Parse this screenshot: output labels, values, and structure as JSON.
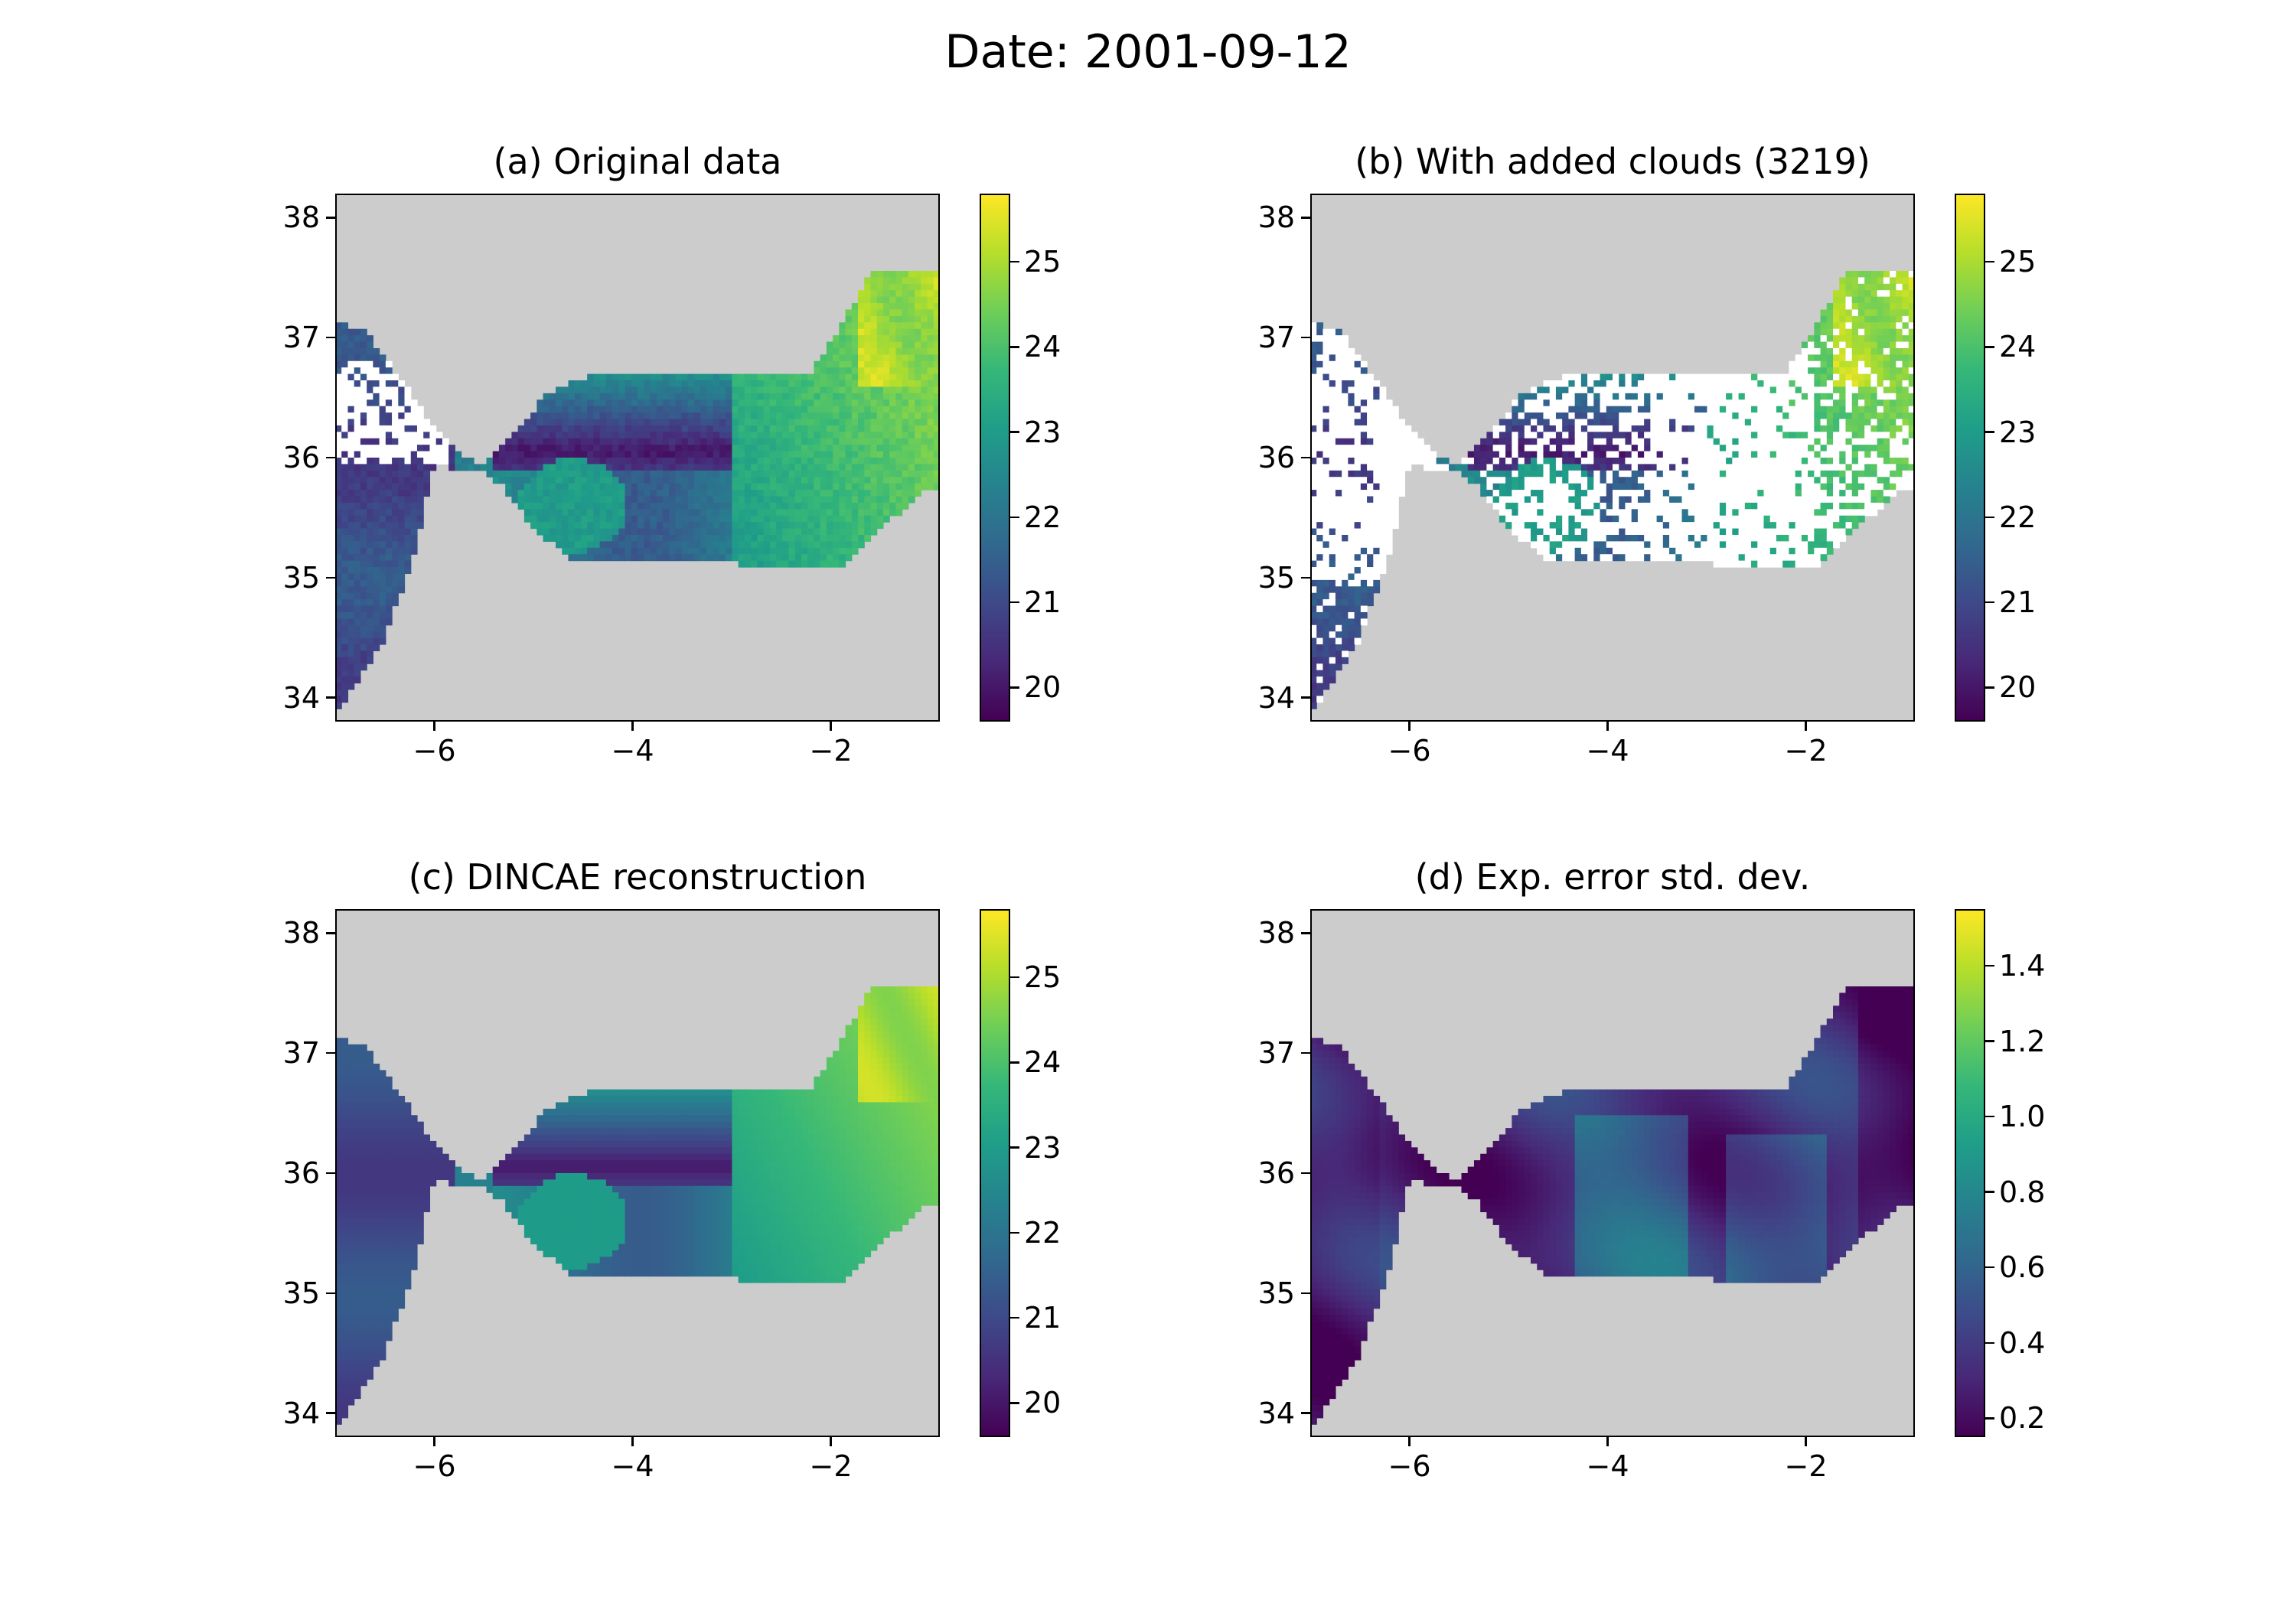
{
  "figure_title": "Date: 2001-09-12",
  "colors": {
    "land": "#cccccc",
    "missing": "#ffffff",
    "colormap": "viridis",
    "viridis_stops": [
      "#440154",
      "#482878",
      "#3e4989",
      "#31688e",
      "#26828e",
      "#1f9e89",
      "#35b779",
      "#6ece58",
      "#b5de2b",
      "#fde725"
    ]
  },
  "chart_data": [
    {
      "type": "heatmap",
      "title": "(a) Original data",
      "x_ticks": [
        "−6",
        "−4",
        "−2"
      ],
      "y_ticks": [
        "34",
        "35",
        "36",
        "37",
        "38"
      ],
      "xlim": [
        -7.0,
        -0.9
      ],
      "ylim": [
        33.8,
        38.2
      ],
      "colorbar": {
        "ticks": [
          "20",
          "21",
          "22",
          "23",
          "24",
          "25"
        ],
        "range": [
          19.6,
          25.8
        ]
      },
      "masked": "partial"
    },
    {
      "type": "heatmap",
      "title": "(b) With added clouds (3219)",
      "x_ticks": [
        "−6",
        "−4",
        "−2"
      ],
      "y_ticks": [
        "34",
        "35",
        "36",
        "37",
        "38"
      ],
      "xlim": [
        -7.0,
        -0.9
      ],
      "ylim": [
        33.8,
        38.2
      ],
      "colorbar": {
        "ticks": [
          "20",
          "21",
          "22",
          "23",
          "24",
          "25"
        ],
        "range": [
          19.6,
          25.8
        ]
      },
      "masked": "heavy"
    },
    {
      "type": "heatmap",
      "title": "(c) DINCAE reconstruction",
      "x_ticks": [
        "−6",
        "−4",
        "−2"
      ],
      "y_ticks": [
        "34",
        "35",
        "36",
        "37",
        "38"
      ],
      "xlim": [
        -7.0,
        -0.9
      ],
      "ylim": [
        33.8,
        38.2
      ],
      "colorbar": {
        "ticks": [
          "20",
          "21",
          "22",
          "23",
          "24",
          "25"
        ],
        "range": [
          19.6,
          25.8
        ]
      },
      "masked": "none"
    },
    {
      "type": "heatmap",
      "title": "(d) Exp. error std. dev.",
      "x_ticks": [
        "−6",
        "−4",
        "−2"
      ],
      "y_ticks": [
        "34",
        "35",
        "36",
        "37",
        "38"
      ],
      "xlim": [
        -7.0,
        -0.9
      ],
      "ylim": [
        33.8,
        38.2
      ],
      "colorbar": {
        "ticks": [
          "0.2",
          "0.4",
          "0.6",
          "0.8",
          "1.0",
          "1.2",
          "1.4"
        ],
        "range": [
          0.15,
          1.55
        ]
      },
      "masked": "none"
    }
  ]
}
